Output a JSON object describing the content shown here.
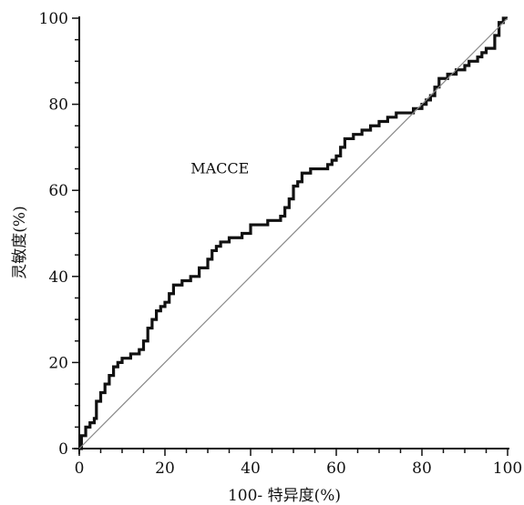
{
  "chart_data": {
    "type": "line",
    "title": "",
    "xlabel": "100- 特异度(%)",
    "ylabel": "灵敏度(%)",
    "xlim": [
      0,
      100
    ],
    "ylim": [
      0,
      100
    ],
    "x_ticks": [
      0,
      20,
      40,
      60,
      80,
      100
    ],
    "y_ticks": [
      0,
      20,
      40,
      60,
      80,
      100
    ],
    "grid": false,
    "annotation": "MACCE",
    "series": [
      {
        "type": "step",
        "color": "#111111",
        "points": [
          [
            0,
            0
          ],
          [
            0.5,
            3
          ],
          [
            1.5,
            5
          ],
          [
            2.5,
            6
          ],
          [
            3.5,
            7
          ],
          [
            4,
            11
          ],
          [
            5,
            13
          ],
          [
            6,
            15
          ],
          [
            7,
            17
          ],
          [
            8,
            19
          ],
          [
            9,
            20
          ],
          [
            10,
            21
          ],
          [
            12,
            22
          ],
          [
            14,
            23
          ],
          [
            15,
            25
          ],
          [
            16,
            28
          ],
          [
            17,
            30
          ],
          [
            18,
            32
          ],
          [
            19,
            33
          ],
          [
            20,
            34
          ],
          [
            21,
            36
          ],
          [
            22,
            38
          ],
          [
            24,
            39
          ],
          [
            26,
            40
          ],
          [
            28,
            42
          ],
          [
            30,
            44
          ],
          [
            31,
            46
          ],
          [
            32,
            47
          ],
          [
            33,
            48
          ],
          [
            35,
            49
          ],
          [
            37,
            49
          ],
          [
            38,
            50
          ],
          [
            40,
            52
          ],
          [
            42,
            52
          ],
          [
            44,
            53
          ],
          [
            46,
            53
          ],
          [
            47,
            54
          ],
          [
            48,
            56
          ],
          [
            49,
            58
          ],
          [
            50,
            61
          ],
          [
            51,
            62
          ],
          [
            52,
            64
          ],
          [
            54,
            65
          ],
          [
            56,
            65
          ],
          [
            58,
            66
          ],
          [
            59,
            67
          ],
          [
            60,
            68
          ],
          [
            61,
            70
          ],
          [
            62,
            72
          ],
          [
            64,
            73
          ],
          [
            66,
            74
          ],
          [
            68,
            75
          ],
          [
            70,
            76
          ],
          [
            72,
            77
          ],
          [
            74,
            78
          ],
          [
            76,
            78
          ],
          [
            78,
            79
          ],
          [
            80,
            80
          ],
          [
            81,
            81
          ],
          [
            82,
            82
          ],
          [
            83,
            84
          ],
          [
            84,
            86
          ],
          [
            86,
            87
          ],
          [
            88,
            88
          ],
          [
            90,
            89
          ],
          [
            91,
            90
          ],
          [
            93,
            91
          ],
          [
            94,
            92
          ],
          [
            95,
            93
          ],
          [
            97,
            96
          ],
          [
            98,
            99
          ],
          [
            99,
            100
          ],
          [
            100,
            100
          ]
        ]
      },
      {
        "type": "reference",
        "color": "#888888",
        "points": [
          [
            0,
            0
          ],
          [
            100,
            100
          ]
        ]
      }
    ]
  }
}
